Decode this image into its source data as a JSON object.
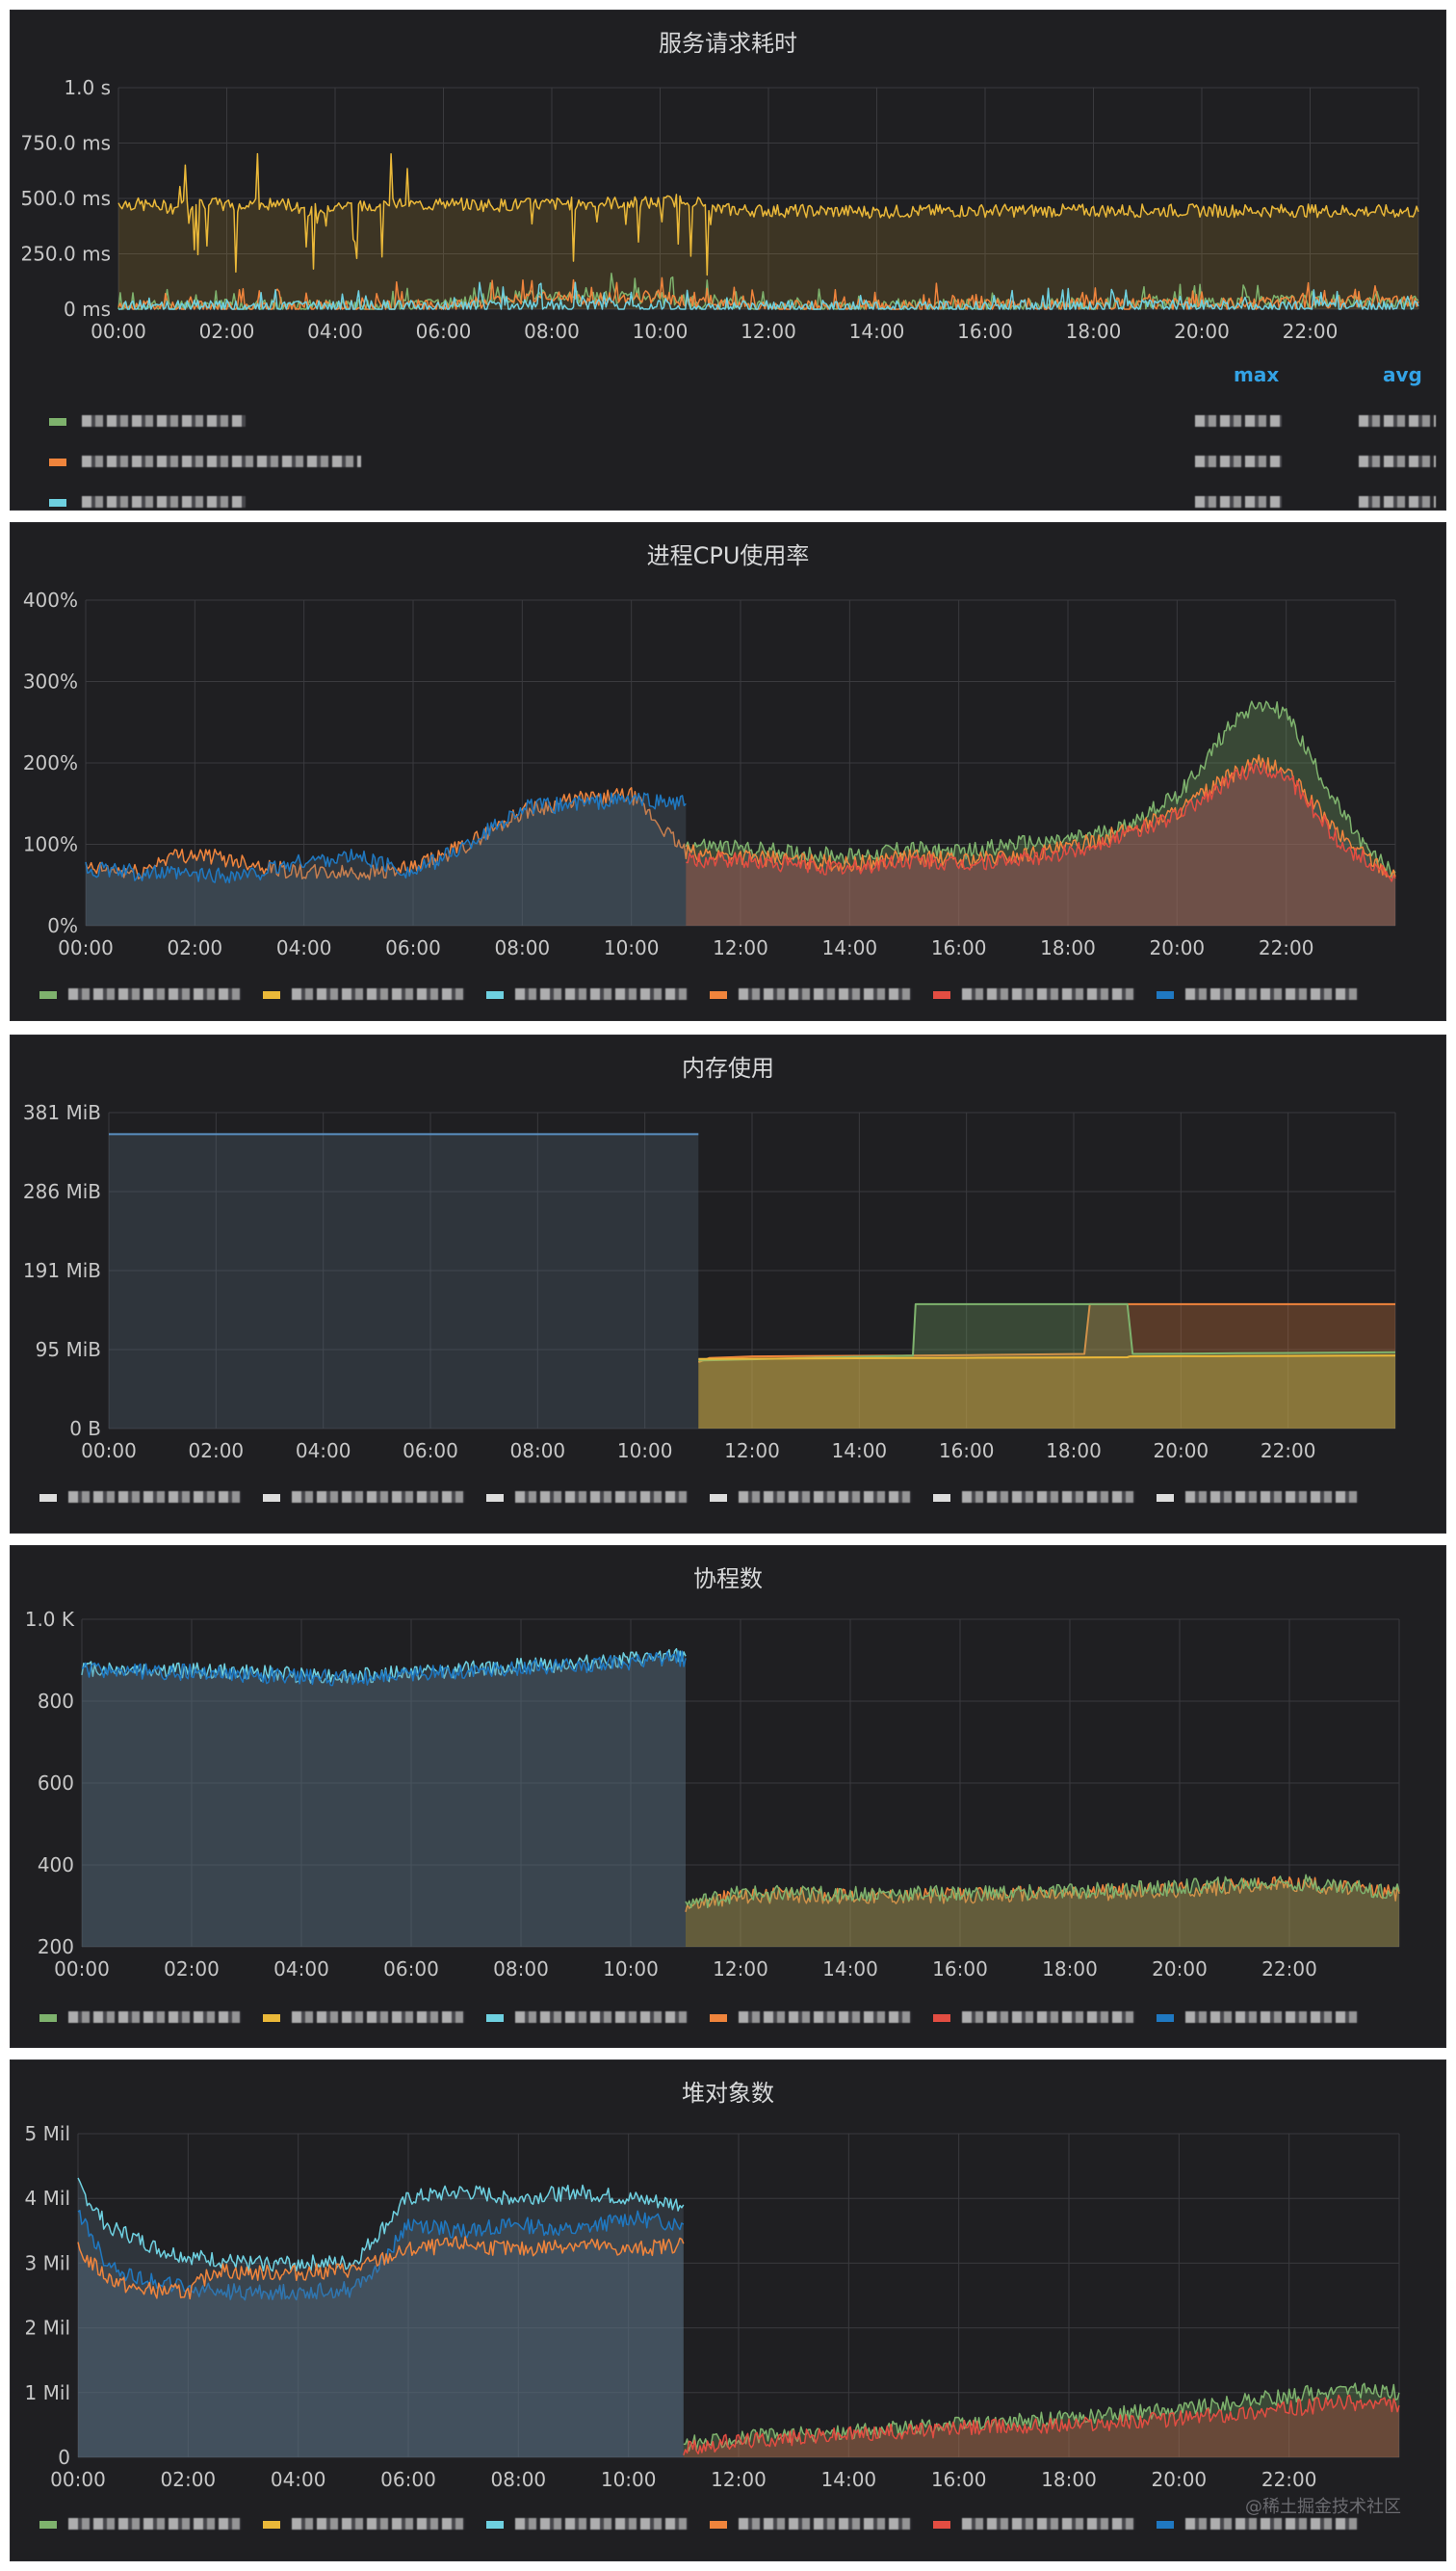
{
  "chart_data": [
    {
      "type": "line",
      "title": "服务请求耗时",
      "x_ticks": [
        "00:00",
        "02:00",
        "04:00",
        "06:00",
        "08:00",
        "10:00",
        "12:00",
        "14:00",
        "16:00",
        "18:00",
        "20:00",
        "22:00"
      ],
      "y_ticks": [
        "0 ms",
        "250.0 ms",
        "500.0 ms",
        "750.0 ms",
        "1.0 s"
      ],
      "ylim": [
        0,
        1000
      ],
      "xlim": [
        0,
        24
      ],
      "legend_headers": [
        "max",
        "avg"
      ],
      "series": [
        {
          "color": "#eab839",
          "x": [
            0,
            0.5,
            1,
            1.5,
            2,
            2.5,
            3,
            3.5,
            4,
            4.5,
            5,
            5.5,
            6,
            7,
            8,
            9,
            10,
            10.5,
            11,
            12,
            14,
            16,
            18,
            20,
            22,
            24
          ],
          "y": [
            480,
            470,
            460,
            480,
            470,
            460,
            480,
            450,
            470,
            460,
            490,
            470,
            475,
            470,
            475,
            480,
            480,
            500,
            450,
            445,
            440,
            445,
            445,
            445,
            445,
            440
          ]
        },
        {
          "color": "#7eb26d",
          "x": [
            0,
            2,
            4,
            6,
            7,
            8,
            9,
            10,
            11,
            12,
            14,
            16,
            18,
            20,
            22,
            24
          ],
          "y": [
            10,
            15,
            12,
            20,
            50,
            60,
            55,
            50,
            20,
            15,
            18,
            20,
            25,
            30,
            35,
            40
          ]
        },
        {
          "color": "#ef843c",
          "x": [
            0,
            2,
            4,
            6,
            7,
            8,
            9,
            10,
            11,
            12,
            14,
            16,
            18,
            20,
            22,
            24
          ],
          "y": [
            8,
            10,
            10,
            15,
            40,
            50,
            45,
            60,
            20,
            12,
            15,
            18,
            22,
            25,
            30,
            35
          ]
        },
        {
          "color": "#6ed0e0",
          "x": [
            0,
            2,
            4,
            6,
            8,
            10,
            12,
            14,
            16,
            18,
            20,
            22,
            24
          ],
          "y": [
            10,
            12,
            10,
            12,
            15,
            12,
            10,
            10,
            10,
            12,
            12,
            14,
            14
          ]
        }
      ]
    },
    {
      "type": "area",
      "title": "进程CPU使用率",
      "x_ticks": [
        "00:00",
        "02:00",
        "04:00",
        "06:00",
        "08:00",
        "10:00",
        "12:00",
        "14:00",
        "16:00",
        "18:00",
        "20:00",
        "22:00"
      ],
      "y_ticks": [
        "0%",
        "100%",
        "200%",
        "300%",
        "400%"
      ],
      "ylim": [
        0,
        400
      ],
      "xlim": [
        0,
        24
      ],
      "series": [
        {
          "color": "#7eb26d",
          "x": [
            11,
            12,
            13,
            14,
            15,
            16,
            17,
            18,
            19,
            20,
            20.5,
            21,
            21.5,
            22,
            22.5,
            23,
            23.5,
            24
          ],
          "y": [
            100,
            95,
            90,
            85,
            95,
            90,
            100,
            105,
            120,
            160,
            200,
            250,
            275,
            260,
            200,
            140,
            90,
            65
          ]
        },
        {
          "color": "#ef843c",
          "x": [
            0,
            1,
            1.5,
            2,
            3,
            3.5,
            4,
            5,
            6,
            7,
            8,
            9,
            10,
            11,
            12,
            13,
            14,
            15,
            16,
            17,
            18,
            19,
            20,
            21,
            21.5,
            22,
            23,
            24
          ],
          "y": [
            70,
            65,
            85,
            88,
            78,
            70,
            65,
            65,
            70,
            100,
            140,
            155,
            160,
            90,
            85,
            80,
            75,
            85,
            80,
            85,
            95,
            115,
            140,
            185,
            200,
            190,
            110,
            60
          ]
        },
        {
          "color": "#e24d42",
          "x": [
            11,
            12,
            13,
            14,
            15,
            16,
            17,
            18,
            19,
            20,
            21,
            21.5,
            22,
            23,
            24
          ],
          "y": [
            80,
            80,
            75,
            70,
            80,
            75,
            80,
            90,
            110,
            135,
            180,
            195,
            185,
            100,
            58
          ]
        },
        {
          "color": "#1f78c1",
          "x": [
            0,
            1,
            2,
            3,
            4,
            5,
            6,
            7,
            8,
            9,
            10,
            11
          ],
          "y": [
            70,
            65,
            62,
            62,
            80,
            85,
            65,
            100,
            145,
            150,
            155,
            150
          ]
        }
      ]
    },
    {
      "type": "area",
      "title": "内存使用",
      "x_ticks": [
        "00:00",
        "02:00",
        "04:00",
        "06:00",
        "08:00",
        "10:00",
        "12:00",
        "14:00",
        "16:00",
        "18:00",
        "20:00",
        "22:00"
      ],
      "y_ticks": [
        "0 B",
        "95 MiB",
        "191 MiB",
        "286 MiB",
        "381 MiB"
      ],
      "ylim": [
        0,
        381
      ],
      "xlim": [
        0,
        24
      ],
      "series": [
        {
          "color": "#5a8fc0",
          "x": [
            0,
            11
          ],
          "y": [
            355,
            355
          ]
        },
        {
          "color": "#ef843c",
          "x": [
            11,
            11.2,
            12,
            15,
            18.2,
            18.3,
            24
          ],
          "y": [
            80,
            85,
            87,
            88,
            90,
            150,
            150
          ]
        },
        {
          "color": "#7eb26d",
          "x": [
            11,
            15,
            15.05,
            19,
            19.1,
            24
          ],
          "y": [
            82,
            88,
            150,
            150,
            90,
            92
          ]
        },
        {
          "color": "#eab839",
          "x": [
            11,
            19,
            19.05,
            24
          ],
          "y": [
            84,
            86,
            87,
            88
          ]
        }
      ]
    },
    {
      "type": "area",
      "title": "协程数",
      "x_ticks": [
        "00:00",
        "02:00",
        "04:00",
        "06:00",
        "08:00",
        "10:00",
        "12:00",
        "14:00",
        "16:00",
        "18:00",
        "20:00",
        "22:00"
      ],
      "y_ticks": [
        "200",
        "400",
        "600",
        "800",
        "1.0 K"
      ],
      "ylim": [
        200,
        1000
      ],
      "xlim": [
        0,
        24
      ],
      "series": [
        {
          "color": "#6ed0e0",
          "x": [
            0,
            2,
            4,
            5,
            6,
            8,
            10,
            11
          ],
          "y": [
            880,
            875,
            865,
            860,
            870,
            885,
            900,
            910
          ]
        },
        {
          "color": "#1f78c1",
          "x": [
            0,
            2,
            4,
            5,
            6,
            8,
            10,
            11
          ],
          "y": [
            875,
            870,
            860,
            855,
            865,
            880,
            895,
            905
          ]
        },
        {
          "color": "#ef843c",
          "x": [
            11,
            11.5,
            12,
            14,
            16,
            18,
            20,
            22,
            23,
            24
          ],
          "y": [
            300,
            315,
            325,
            325,
            325,
            330,
            340,
            355,
            345,
            330
          ]
        },
        {
          "color": "#7eb26d",
          "x": [
            11,
            12,
            14,
            16,
            18,
            20,
            22,
            24
          ],
          "y": [
            305,
            330,
            330,
            330,
            335,
            345,
            360,
            335
          ]
        }
      ]
    },
    {
      "type": "area",
      "title": "堆对象数",
      "x_ticks": [
        "00:00",
        "02:00",
        "04:00",
        "06:00",
        "08:00",
        "10:00",
        "12:00",
        "14:00",
        "16:00",
        "18:00",
        "20:00",
        "22:00"
      ],
      "y_ticks": [
        "0",
        "1 Mil",
        "2 Mil",
        "3 Mil",
        "4 Mil",
        "5 Mil"
      ],
      "ylim": [
        0,
        5
      ],
      "xlim": [
        0,
        24
      ],
      "series": [
        {
          "color": "#6ed0e0",
          "x": [
            0,
            0.5,
            1,
            1.5,
            2,
            3,
            4,
            5,
            5.5,
            6,
            7,
            8,
            9,
            10,
            11
          ],
          "y": [
            4.2,
            3.6,
            3.4,
            3.2,
            3.1,
            3.0,
            3.0,
            3.0,
            3.5,
            4.0,
            4.1,
            4.0,
            4.1,
            4.0,
            3.9
          ]
        },
        {
          "color": "#1f78c1",
          "x": [
            0,
            0.5,
            1,
            1.5,
            2,
            3,
            4,
            5,
            5.5,
            6,
            7,
            8,
            9,
            10,
            11
          ],
          "y": [
            3.8,
            3.0,
            2.8,
            2.7,
            2.6,
            2.55,
            2.55,
            2.6,
            3.0,
            3.6,
            3.5,
            3.6,
            3.5,
            3.7,
            3.6
          ]
        },
        {
          "color": "#ef843c",
          "x": [
            0,
            0.5,
            1,
            2,
            2.5,
            3,
            4,
            5,
            6,
            7,
            8,
            9,
            10,
            11
          ],
          "y": [
            3.2,
            2.8,
            2.6,
            2.55,
            2.9,
            2.85,
            2.85,
            2.9,
            3.2,
            3.3,
            3.2,
            3.3,
            3.2,
            3.3
          ]
        },
        {
          "color": "#7eb26d",
          "x": [
            11,
            12,
            14,
            16,
            18,
            20,
            22,
            23,
            24
          ],
          "y": [
            0.2,
            0.3,
            0.4,
            0.5,
            0.6,
            0.75,
            0.95,
            1.05,
            1.0
          ]
        },
        {
          "color": "#e24d42",
          "x": [
            11,
            12,
            14,
            16,
            18,
            20,
            22,
            23,
            24
          ],
          "y": [
            0.15,
            0.25,
            0.35,
            0.45,
            0.5,
            0.6,
            0.75,
            0.85,
            0.8
          ]
        }
      ]
    }
  ],
  "legend_colors": [
    [
      "#7eb26d",
      "#ef843c",
      "#6ed0e0"
    ],
    [
      "#7eb26d",
      "#eab839",
      "#6ed0e0",
      "#ef843c",
      "#e24d42",
      "#1f78c1"
    ],
    [
      "#dddddd",
      "#dddddd",
      "#dddddd",
      "#dddddd",
      "#dddddd",
      "#dddddd"
    ],
    [
      "#7eb26d",
      "#eab839",
      "#6ed0e0",
      "#ef843c",
      "#e24d42",
      "#1f78c1"
    ],
    [
      "#7eb26d",
      "#eab839",
      "#6ed0e0",
      "#ef843c",
      "#e24d42",
      "#1f78c1"
    ]
  ],
  "watermark": "@稀土掘金技术社区"
}
